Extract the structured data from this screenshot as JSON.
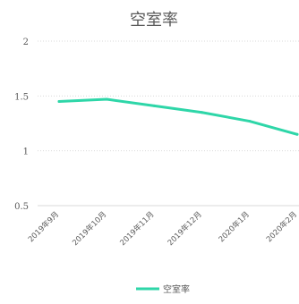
{
  "chart_data": {
    "type": "line",
    "title": "空室率",
    "categories": [
      "2019年9月",
      "2019年10月",
      "2019年11月",
      "2019年12月",
      "2020年1月",
      "2020年2月"
    ],
    "series": [
      {
        "name": "空室率",
        "values": [
          1.45,
          1.47,
          1.41,
          1.35,
          1.27,
          1.15
        ],
        "color": "#2ed6a8"
      }
    ],
    "ylim": [
      0.5,
      2
    ],
    "yticks": [
      "2",
      "1.5",
      "1",
      "0.5"
    ],
    "ytick_values": [
      2,
      1.5,
      1,
      0.5
    ],
    "grid": true,
    "legend_position": "bottom"
  }
}
